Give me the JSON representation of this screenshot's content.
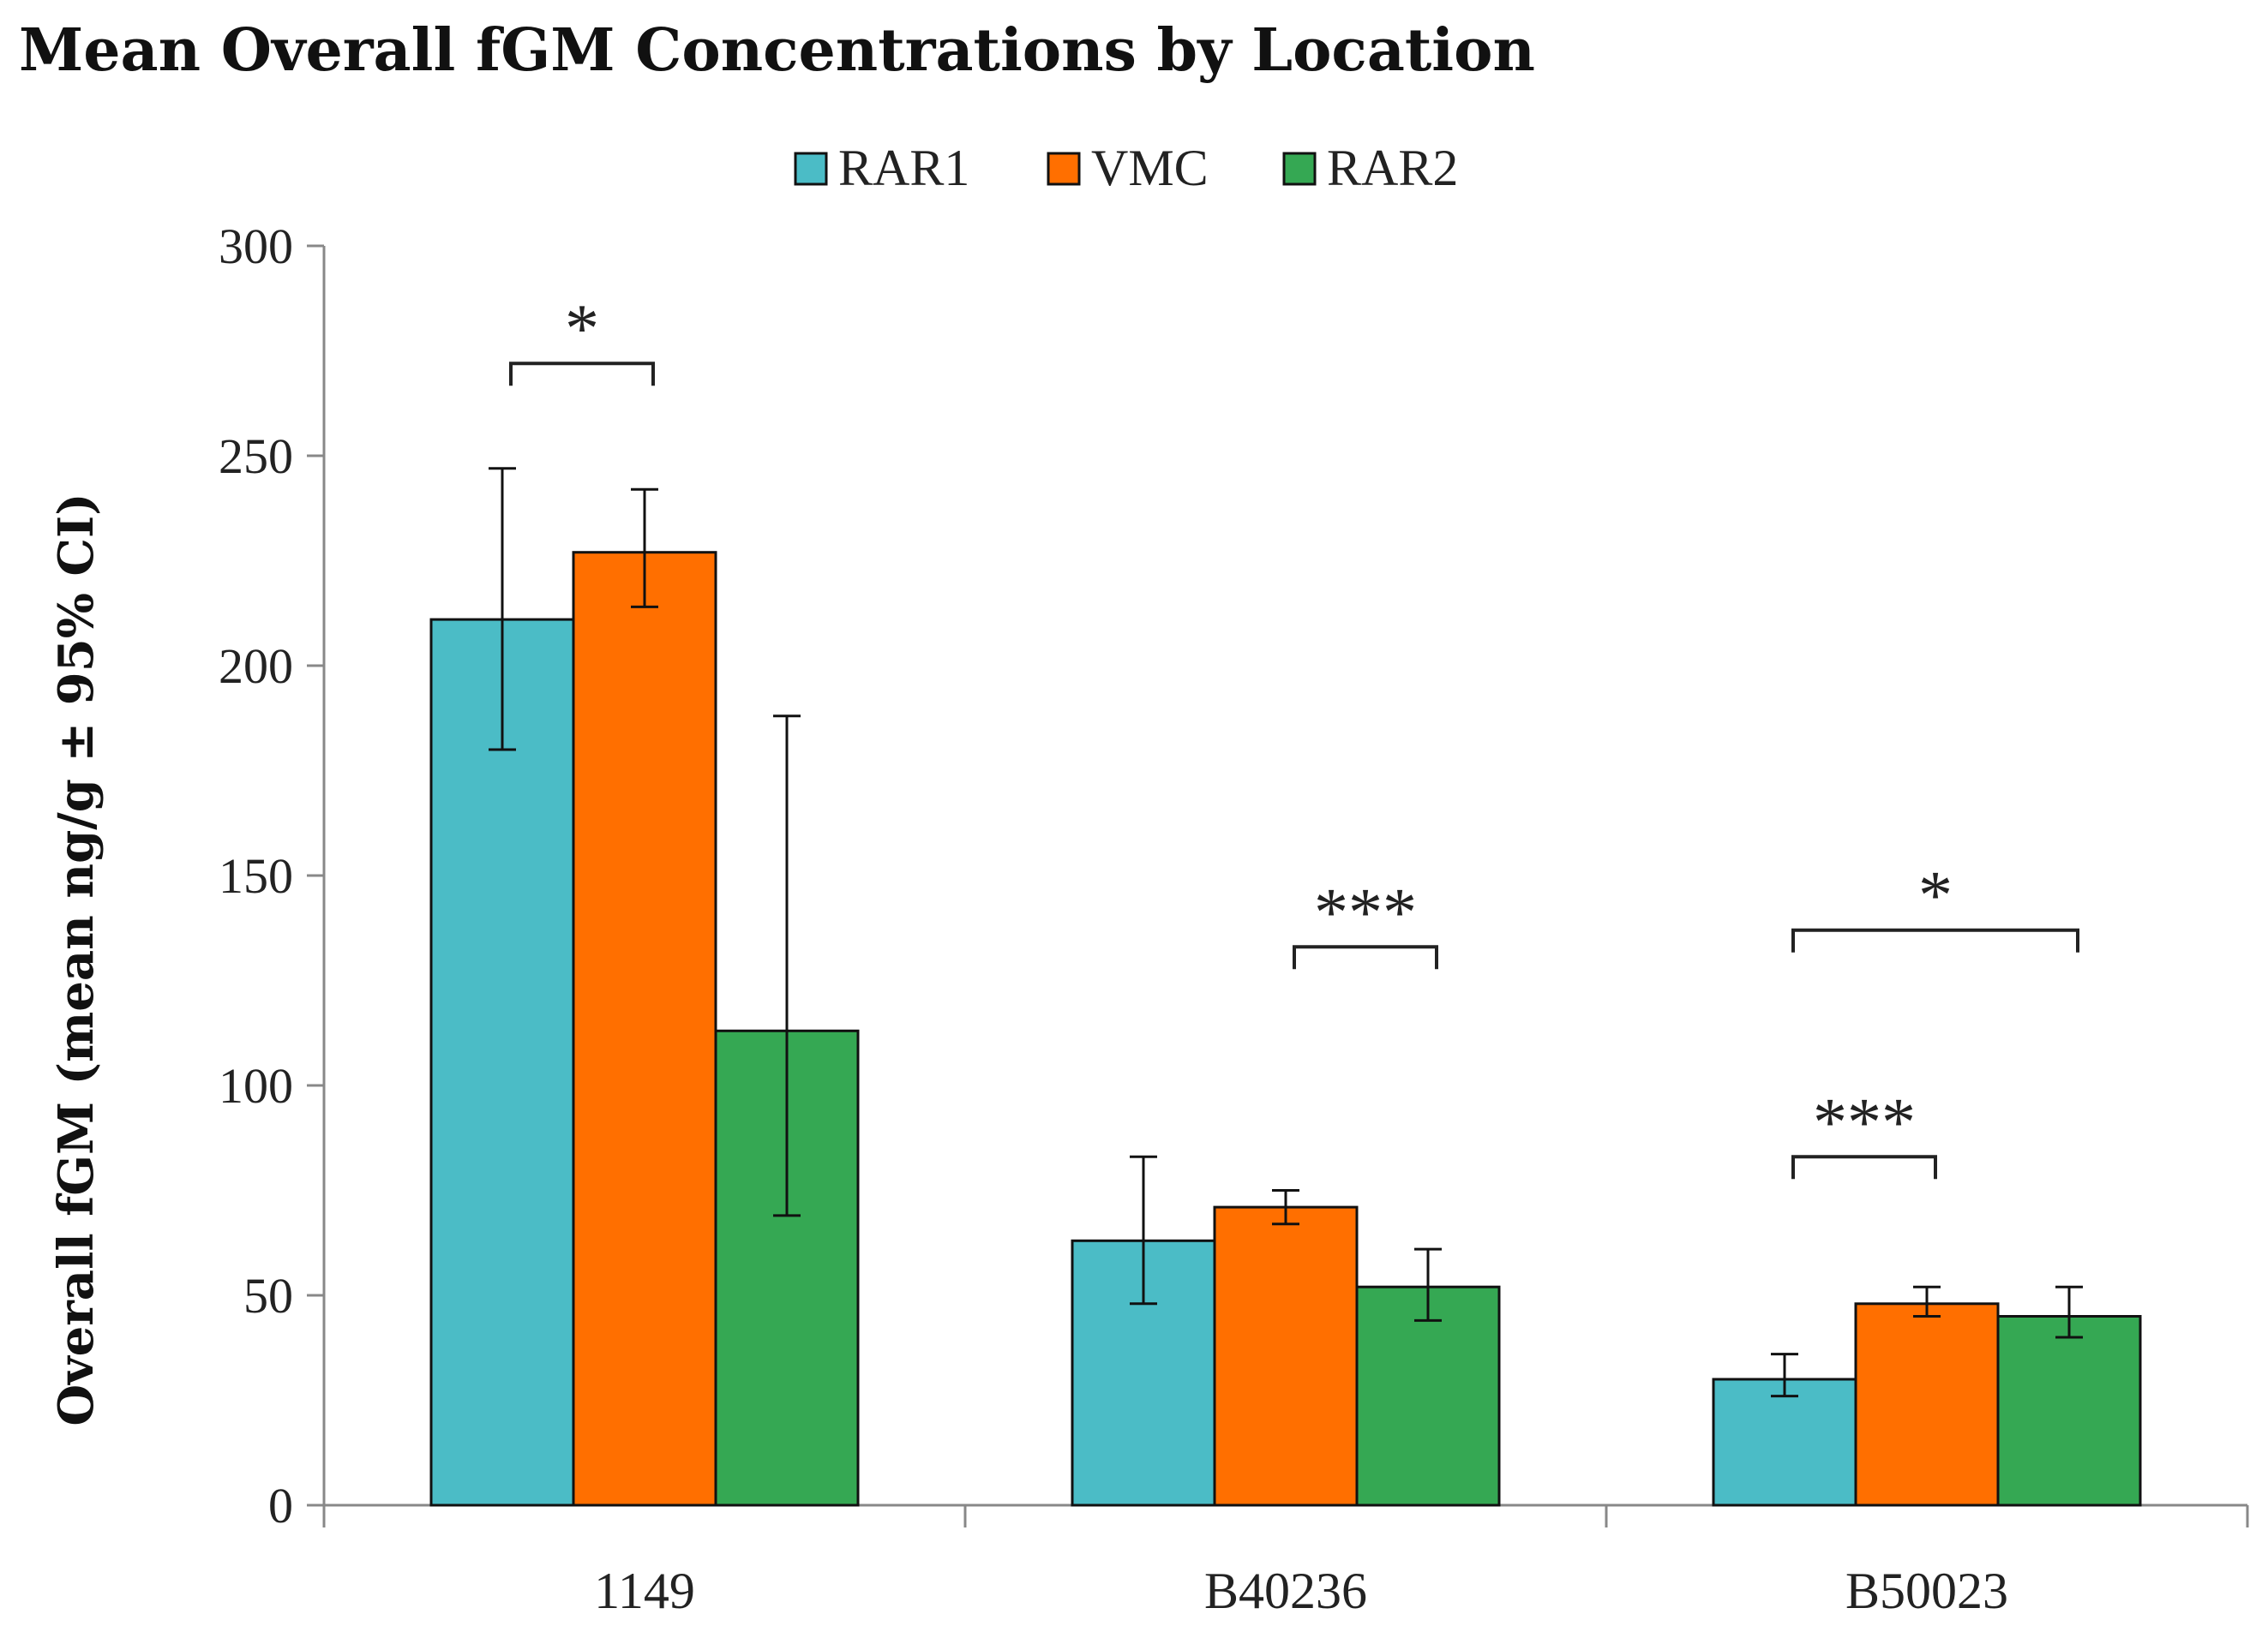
{
  "chart_data": {
    "type": "bar",
    "title": "Mean Overall fGM Concentrations by Location",
    "xlabel": "",
    "ylabel": "Overall fGM (mean ng/g ± 95% CI)",
    "ylim": [
      0,
      300
    ],
    "yticks": [
      0,
      50,
      100,
      150,
      200,
      250,
      300
    ],
    "legend_position": "top-center",
    "grid": false,
    "categories": [
      "1149",
      "B40236",
      "B50023"
    ],
    "series": [
      {
        "name": "RAR1",
        "color": "#4BBCC6",
        "values": [
          211,
          63,
          30
        ],
        "ci_low": [
          180,
          48,
          26
        ],
        "ci_high": [
          247,
          83,
          36
        ]
      },
      {
        "name": "VMC",
        "color": "#FF6F00",
        "values": [
          227,
          71,
          48
        ],
        "ci_low": [
          214,
          67,
          45
        ],
        "ci_high": [
          242,
          75,
          52
        ]
      },
      {
        "name": "RAR2",
        "color": "#35A853",
        "values": [
          113,
          52,
          45
        ],
        "ci_low": [
          69,
          44,
          40
        ],
        "ci_high": [
          188,
          61,
          52
        ]
      }
    ],
    "annotations": [
      {
        "text": "*",
        "category": 0,
        "from_series": 0,
        "to_series": 1,
        "y": 272
      },
      {
        "text": "***",
        "category": 1,
        "from_series": 1,
        "to_series": 2,
        "y": 133
      },
      {
        "text": "*",
        "category": 2,
        "from_series": 0,
        "to_series": 2,
        "y": 137
      },
      {
        "text": "***",
        "category": 2,
        "from_series": 0,
        "to_series": 1,
        "y": 83
      }
    ]
  }
}
